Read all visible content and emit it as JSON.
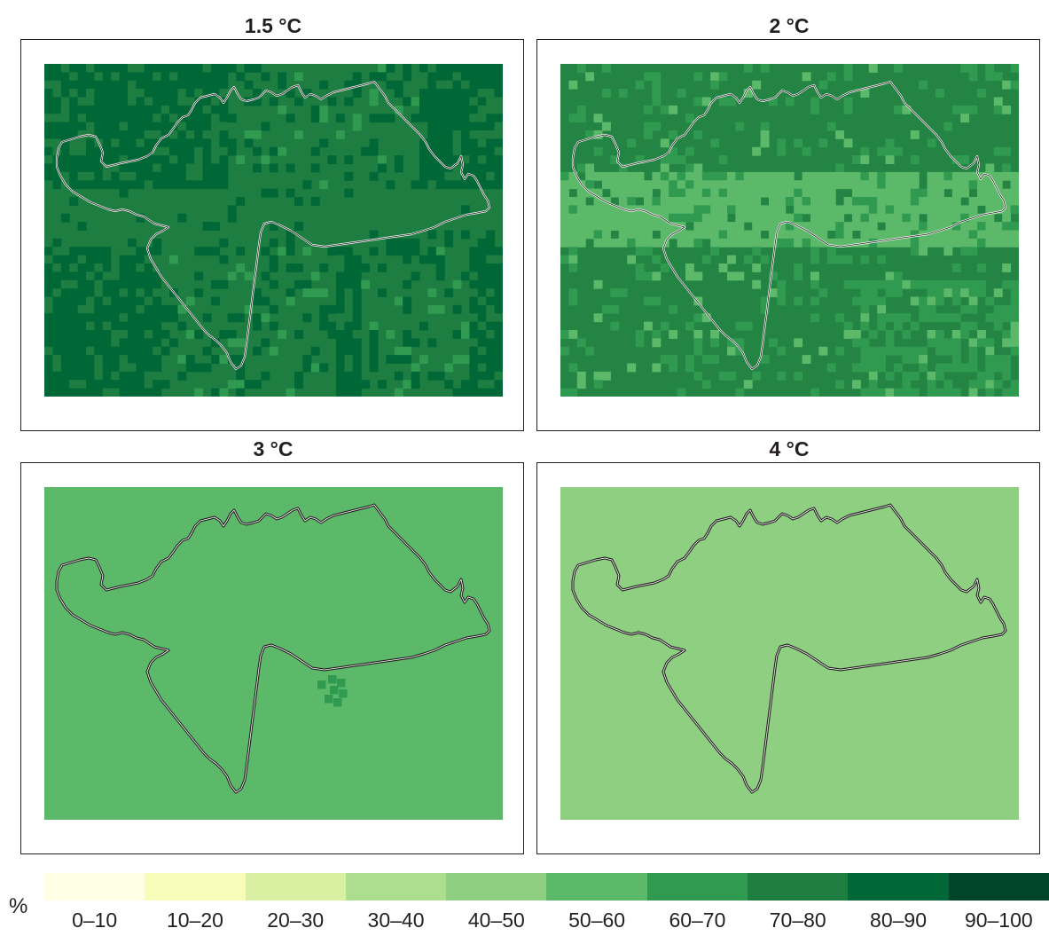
{
  "panels": [
    {
      "title": "1.5 °C",
      "base": "#1e7d40",
      "variant": "mixed_dark"
    },
    {
      "title": "2 °C",
      "base": "#238443",
      "variant": "mixed_mid"
    },
    {
      "title": "3 °C",
      "base": "#5db96a",
      "variant": "uniform_patch"
    },
    {
      "title": "4 °C",
      "base": "#8fcf81",
      "variant": "uniform"
    }
  ],
  "legend": {
    "unit": "%",
    "classes": [
      {
        "label": "0–10",
        "color": "#ffffe5"
      },
      {
        "label": "10–20",
        "color": "#f7fcb9"
      },
      {
        "label": "20–30",
        "color": "#d9f0a3"
      },
      {
        "label": "30–40",
        "color": "#addd8e"
      },
      {
        "label": "40–50",
        "color": "#8fcf81"
      },
      {
        "label": "50–60",
        "color": "#5db96a"
      },
      {
        "label": "60–70",
        "color": "#2f9a50"
      },
      {
        "label": "70–80",
        "color": "#1e7d40"
      },
      {
        "label": "80–90",
        "color": "#006837"
      },
      {
        "label": "90–100",
        "color": "#00452a"
      }
    ]
  },
  "colors": {
    "outline_light": "#ffffff",
    "outline_dark": "#231f20"
  }
}
